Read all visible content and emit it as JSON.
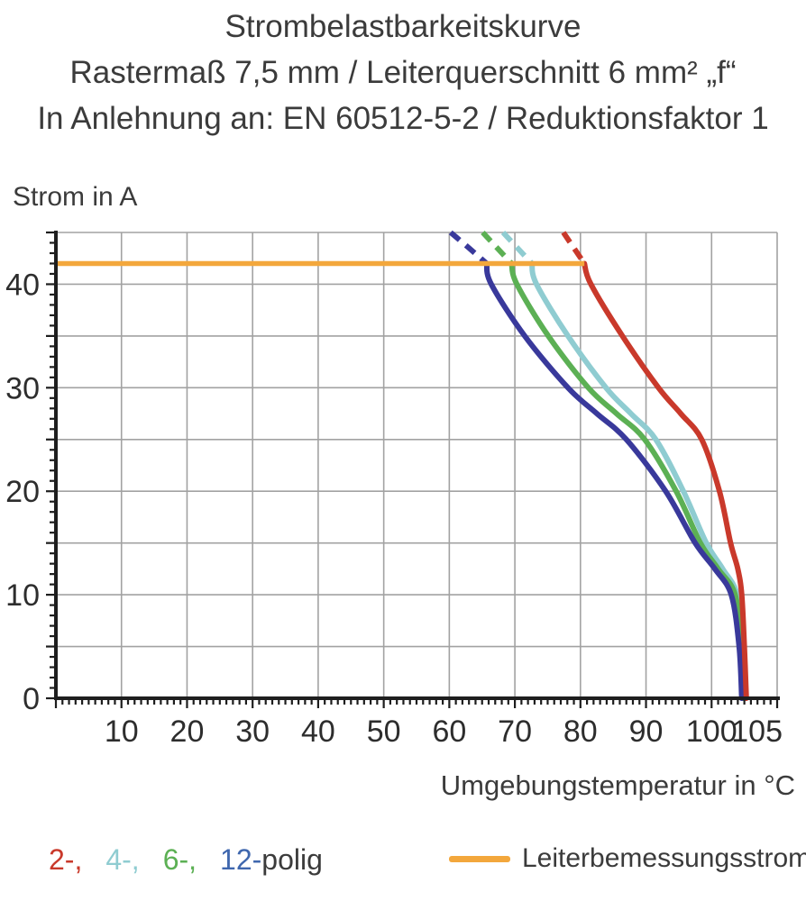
{
  "title": {
    "line1": "Strombelastbarkeitskurve",
    "line2": "Rastermaß 7,5 mm / Leiterquerschnitt 6 mm² „f“",
    "line3": "In Anlehnung an: EN 60512-5-2 / Reduktionsfaktor 1"
  },
  "chart_data": {
    "type": "line",
    "title": "Strombelastbarkeitskurve",
    "xlabel": "Umgebungstemperatur in °C",
    "ylabel": "Strom in A",
    "xlim": [
      0,
      110
    ],
    "ylim": [
      0,
      45
    ],
    "x_tick_labels": [
      "10",
      "20",
      "30",
      "40",
      "50",
      "60",
      "70",
      "80",
      "90",
      "100",
      "105"
    ],
    "x_tick_values": [
      10,
      20,
      30,
      40,
      50,
      60,
      70,
      80,
      90,
      100,
      105
    ],
    "y_tick_labels": [
      "0",
      "10",
      "20",
      "30",
      "40"
    ],
    "y_tick_values": [
      0,
      10,
      20,
      30,
      40
    ],
    "x_grid_step": 10,
    "y_grid_step": 5,
    "minor_tick_step": 1,
    "grid": true,
    "legend_position": "bottom",
    "colors": {
      "grid": "#a2a2a2",
      "axis": "#1e1e1e",
      "text": "#2d2d2d"
    },
    "series": [
      {
        "name": "4-polig",
        "color": "#8fccd1",
        "dashed_points": [
          [
            68.2,
            45
          ],
          [
            70.4,
            43.5
          ],
          [
            72.6,
            42
          ]
        ],
        "points": [
          [
            72.6,
            42
          ],
          [
            73.3,
            40
          ],
          [
            78.1,
            35
          ],
          [
            83.9,
            30
          ],
          [
            87.7,
            27.5
          ],
          [
            91.5,
            25
          ],
          [
            95.7,
            20
          ],
          [
            99.2,
            15
          ],
          [
            101.7,
            12.5
          ],
          [
            103.9,
            10
          ],
          [
            104.6,
            5
          ],
          [
            104.9,
            0
          ]
        ]
      },
      {
        "name": "6-polig",
        "color": "#5cb054",
        "dashed_points": [
          [
            65.1,
            45
          ],
          [
            67.3,
            43.5
          ],
          [
            69.5,
            42
          ]
        ],
        "points": [
          [
            69.5,
            42
          ],
          [
            70.3,
            40
          ],
          [
            75.1,
            35
          ],
          [
            81.2,
            30
          ],
          [
            85.5,
            27.5
          ],
          [
            89.8,
            25
          ],
          [
            94.6,
            20
          ],
          [
            98.3,
            15
          ],
          [
            101.0,
            12.5
          ],
          [
            103.6,
            10
          ],
          [
            104.4,
            5
          ],
          [
            104.8,
            0
          ]
        ]
      },
      {
        "name": "12-polig",
        "color": "#39399b",
        "dashed_points": [
          [
            60.2,
            45
          ],
          [
            63.0,
            43.5
          ],
          [
            65.7,
            42
          ]
        ],
        "points": [
          [
            65.7,
            42
          ],
          [
            66.4,
            40
          ],
          [
            71.5,
            35
          ],
          [
            78.1,
            30
          ],
          [
            82.5,
            27.5
          ],
          [
            87.0,
            25
          ],
          [
            93.0,
            20
          ],
          [
            97.5,
            15
          ],
          [
            100.5,
            12.5
          ],
          [
            103.0,
            10
          ],
          [
            104.2,
            5
          ],
          [
            104.6,
            0
          ]
        ]
      },
      {
        "name": "2-polig",
        "color": "#c9392b",
        "dashed_points": [
          [
            77.4,
            45
          ],
          [
            79.0,
            43.5
          ],
          [
            80.6,
            42
          ]
        ],
        "points": [
          [
            80.6,
            42
          ],
          [
            81.6,
            40
          ],
          [
            86.4,
            35
          ],
          [
            91.9,
            30
          ],
          [
            95.3,
            27.5
          ],
          [
            98.5,
            25
          ],
          [
            101.2,
            20
          ],
          [
            102.9,
            15
          ],
          [
            104.0,
            12.5
          ],
          [
            104.6,
            10
          ],
          [
            105.0,
            5
          ],
          [
            105.3,
            0
          ]
        ]
      }
    ],
    "reference_line": {
      "name": "Leiterbemessungsstrom",
      "color": "#f3a73c",
      "y": 42,
      "x_start": 0,
      "x_end": 80.6
    }
  },
  "legend": {
    "poles": [
      {
        "label": "2-,",
        "color": "#c9392b"
      },
      {
        "label": "4-,",
        "color": "#8fccd1"
      },
      {
        "label": "6-,",
        "color": "#5cb054"
      },
      {
        "label": "12-",
        "color": "#3f67ae"
      }
    ],
    "suffix": "polig",
    "suffix_color": "#3b3b3b",
    "reference_label": "Leiterbemessungsstrom"
  }
}
